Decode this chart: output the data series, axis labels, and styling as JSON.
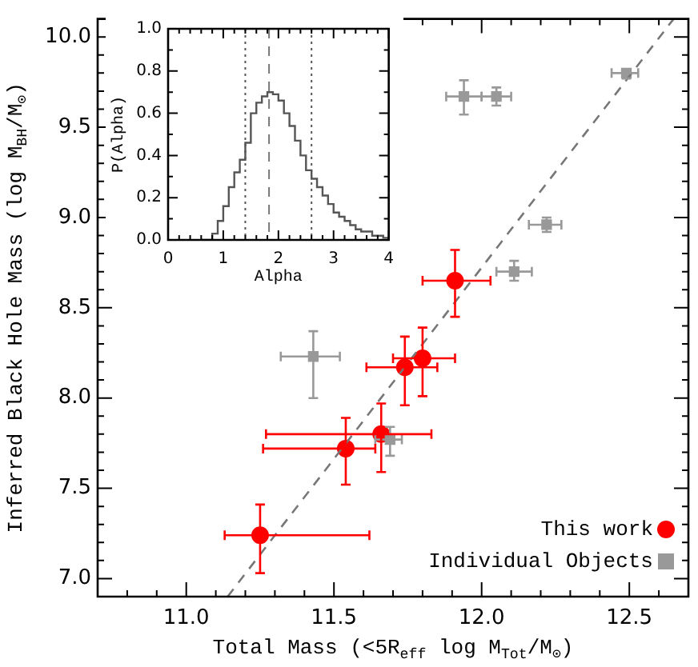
{
  "chart_data": [
    {
      "type": "scatter",
      "xlabel": "Total Mass (<5R$_{eff}$ log M$_{Tot}$/M$_{⊙}$)",
      "ylabel": "Inferred Black Hole Mass (log M$_{BH}$/M$_{⊙}$)",
      "xlim": [
        10.7,
        12.7
      ],
      "ylim": [
        6.9,
        10.1
      ],
      "xticks": [
        {
          "value": 10.8,
          "label": null
        },
        {
          "value": 10.9,
          "label": null
        },
        {
          "value": 11.0,
          "label": "11.0"
        },
        {
          "value": 11.1,
          "label": null
        },
        {
          "value": 11.2,
          "label": null
        },
        {
          "value": 11.3,
          "label": null
        },
        {
          "value": 11.4,
          "label": null
        },
        {
          "value": 11.5,
          "label": "11.5"
        },
        {
          "value": 11.6,
          "label": null
        },
        {
          "value": 11.7,
          "label": null
        },
        {
          "value": 11.8,
          "label": null
        },
        {
          "value": 11.9,
          "label": null
        },
        {
          "value": 12.0,
          "label": "12.0"
        },
        {
          "value": 12.1,
          "label": null
        },
        {
          "value": 12.2,
          "label": null
        },
        {
          "value": 12.3,
          "label": null
        },
        {
          "value": 12.4,
          "label": null
        },
        {
          "value": 12.5,
          "label": "12.5"
        },
        {
          "value": 12.6,
          "label": null
        }
      ],
      "yticks": [
        {
          "value": 7.0,
          "label": "7.0"
        },
        {
          "value": 7.1,
          "label": null
        },
        {
          "value": 7.2,
          "label": null
        },
        {
          "value": 7.3,
          "label": null
        },
        {
          "value": 7.4,
          "label": null
        },
        {
          "value": 7.5,
          "label": "7.5"
        },
        {
          "value": 7.6,
          "label": null
        },
        {
          "value": 7.7,
          "label": null
        },
        {
          "value": 7.8,
          "label": null
        },
        {
          "value": 7.9,
          "label": null
        },
        {
          "value": 8.0,
          "label": "8.0"
        },
        {
          "value": 8.1,
          "label": null
        },
        {
          "value": 8.2,
          "label": null
        },
        {
          "value": 8.3,
          "label": null
        },
        {
          "value": 8.4,
          "label": null
        },
        {
          "value": 8.5,
          "label": "8.5"
        },
        {
          "value": 8.6,
          "label": null
        },
        {
          "value": 8.7,
          "label": null
        },
        {
          "value": 8.8,
          "label": null
        },
        {
          "value": 8.9,
          "label": null
        },
        {
          "value": 9.0,
          "label": "9.0"
        },
        {
          "value": 9.1,
          "label": null
        },
        {
          "value": 9.2,
          "label": null
        },
        {
          "value": 9.3,
          "label": null
        },
        {
          "value": 9.4,
          "label": null
        },
        {
          "value": 9.5,
          "label": "9.5"
        },
        {
          "value": 9.6,
          "label": null
        },
        {
          "value": 9.7,
          "label": null
        },
        {
          "value": 9.8,
          "label": null
        },
        {
          "value": 9.9,
          "label": null
        },
        {
          "value": 10.0,
          "label": "10.0"
        }
      ],
      "legend": "bottom right",
      "series": [
        {
          "type": "line",
          "color": "#777777",
          "line_style": "dashed",
          "marker": "none",
          "x": [
            11.14,
            12.65
          ],
          "values": [
            6.9,
            10.1
          ]
        },
        {
          "name": "Individual Objects",
          "color": "#999999",
          "marker": "square",
          "x": [
            11.94,
            12.05,
            12.49,
            12.22,
            12.11,
            11.43,
            11.69
          ],
          "values": [
            9.67,
            9.67,
            9.8,
            8.96,
            8.7,
            8.23,
            7.77
          ],
          "errors": [
            [
              9.57,
              9.76
            ],
            [
              9.62,
              9.72
            ],
            [
              9.77,
              9.82
            ],
            [
              8.92,
              9.0
            ],
            [
              8.65,
              8.76
            ],
            [
              8.0,
              8.37
            ],
            [
              7.68,
              7.84
            ]
          ],
          "xerrors": [
            [
              11.88,
              12.0
            ],
            [
              12.0,
              12.1
            ],
            [
              12.44,
              12.53
            ],
            [
              12.16,
              12.27
            ],
            [
              12.05,
              12.17
            ],
            [
              11.32,
              11.52
            ],
            [
              11.64,
              11.73
            ]
          ]
        },
        {
          "name": "This work",
          "color": "#ff0000",
          "marker": "circle",
          "x": [
            11.25,
            11.54,
            11.66,
            11.74,
            11.8,
            11.91
          ],
          "values": [
            7.24,
            7.72,
            7.8,
            8.17,
            8.22,
            8.65
          ],
          "errors": [
            [
              7.03,
              7.41
            ],
            [
              7.52,
              7.89
            ],
            [
              7.59,
              7.97
            ],
            [
              7.96,
              8.34
            ],
            [
              8.01,
              8.39
            ],
            [
              8.45,
              8.82
            ]
          ],
          "xerrors": [
            [
              11.13,
              11.62
            ],
            [
              11.26,
              11.64
            ],
            [
              11.27,
              11.83
            ],
            [
              11.61,
              11.85
            ],
            [
              11.7,
              11.91
            ],
            [
              11.8,
              12.03
            ]
          ]
        }
      ]
    },
    {
      "type": "histogram",
      "xlabel": "Alpha",
      "ylabel": "P(Alpha)",
      "xlim": [
        0,
        4
      ],
      "ylim": [
        0,
        1.0
      ],
      "xticks": [
        0,
        {
          "value": 0.2,
          "label": null
        },
        {
          "value": 0.4,
          "label": null
        },
        {
          "value": 0.6,
          "label": null
        },
        {
          "value": 0.8,
          "label": null
        },
        1,
        {
          "value": 1.2,
          "label": null
        },
        {
          "value": 1.4,
          "label": null
        },
        {
          "value": 1.6,
          "label": null
        },
        {
          "value": 1.8,
          "label": null
        },
        2,
        {
          "value": 2.2,
          "label": null
        },
        {
          "value": 2.4,
          "label": null
        },
        {
          "value": 2.6,
          "label": null
        },
        {
          "value": 2.8,
          "label": null
        },
        3,
        {
          "value": 3.2,
          "label": null
        },
        {
          "value": 3.4,
          "label": null
        },
        {
          "value": 3.6,
          "label": null
        },
        {
          "value": 3.8,
          "label": null
        },
        4
      ],
      "yticks": [
        {
          "value": 0,
          "label": "0.0"
        },
        {
          "value": 0.1,
          "label": null
        },
        {
          "value": 0.2,
          "label": "0.2"
        },
        {
          "value": 0.3,
          "label": null
        },
        {
          "value": 0.4,
          "label": "0.4"
        },
        {
          "value": 0.5,
          "label": null
        },
        {
          "value": 0.6,
          "label": "0.6"
        },
        {
          "value": 0.7,
          "label": null
        },
        {
          "value": 0.8,
          "label": "0.8"
        },
        {
          "value": 0.9,
          "label": null
        },
        {
          "value": 1.0,
          "label": "1.0"
        }
      ],
      "color": "#555555",
      "bins": [
        0.6,
        0.7,
        0.8,
        0.9,
        1.0,
        1.1,
        1.2,
        1.3,
        1.4,
        1.5,
        1.6,
        1.7,
        1.8,
        1.9,
        2.0,
        2.1,
        2.2,
        2.3,
        2.4,
        2.5,
        2.6,
        2.7,
        2.8,
        2.9,
        3.0,
        3.1,
        3.2,
        3.3,
        3.4,
        3.5,
        3.6,
        3.7,
        3.8,
        3.9,
        4.0
      ],
      "values": [
        0,
        0,
        0.03,
        0.09,
        0.16,
        0.25,
        0.32,
        0.38,
        0.46,
        0.6,
        0.65,
        0.68,
        0.7,
        0.69,
        0.66,
        0.6,
        0.54,
        0.47,
        0.4,
        0.33,
        0.29,
        0.25,
        0.21,
        0.17,
        0.13,
        0.11,
        0.09,
        0.07,
        0.05,
        0.04,
        0.04,
        0.02,
        0.02,
        0.01
      ],
      "ref_lines": [
        {
          "axis": "x",
          "value": 1.4,
          "line_style": "dotted",
          "color": "#555555"
        },
        {
          "axis": "x",
          "value": 1.83,
          "line_style": "dashed",
          "color": "#777777"
        },
        {
          "axis": "x",
          "value": 2.6,
          "line_style": "dotted",
          "color": "#555555"
        }
      ]
    }
  ]
}
